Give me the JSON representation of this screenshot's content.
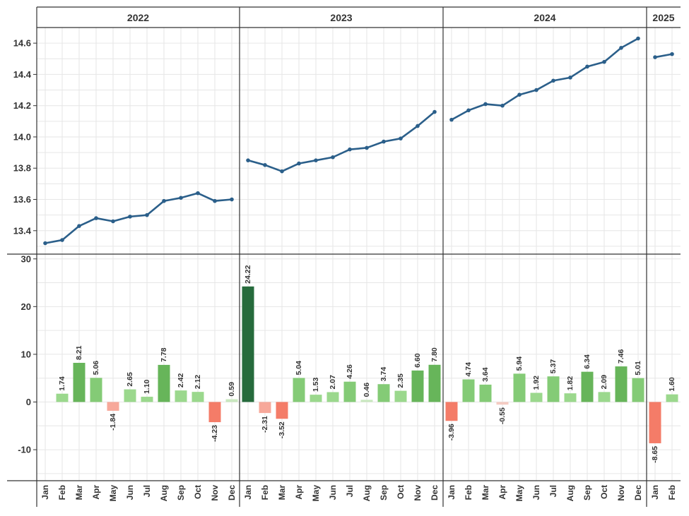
{
  "chart_data": [
    {
      "type": "line",
      "title": "",
      "ylim": [
        13.25,
        14.7
      ],
      "yticks": [
        "13.4",
        "13.6",
        "13.8",
        "14.0",
        "14.2",
        "14.4",
        "14.6"
      ],
      "color": "#2b5f8a",
      "years": [
        "2022",
        "2023",
        "2024",
        "2025"
      ],
      "series": [
        {
          "year": "2022",
          "values": [
            13.32,
            13.34,
            13.43,
            13.48,
            13.46,
            13.49,
            13.5,
            13.59,
            13.61,
            13.64,
            13.59,
            13.6
          ]
        },
        {
          "year": "2023",
          "values": [
            13.85,
            13.82,
            13.78,
            13.83,
            13.85,
            13.87,
            13.92,
            13.93,
            13.97,
            13.99,
            14.07,
            14.16
          ]
        },
        {
          "year": "2024",
          "values": [
            14.11,
            14.17,
            14.21,
            14.2,
            14.27,
            14.3,
            14.36,
            14.38,
            14.45,
            14.48,
            14.57,
            14.63
          ]
        },
        {
          "year": "2025",
          "values": [
            14.51,
            14.53
          ]
        }
      ]
    },
    {
      "type": "bar",
      "title": "",
      "ylim": [
        -16.5,
        31
      ],
      "yticks": [
        "-10",
        "0",
        "10",
        "20",
        "30"
      ],
      "years": [
        "2022",
        "2023",
        "2024",
        "2025"
      ],
      "months": [
        "Jan",
        "Feb",
        "Mar",
        "Apr",
        "May",
        "Jun",
        "Jul",
        "Aug",
        "Sep",
        "Oct",
        "Nov",
        "Dec"
      ],
      "colors": {
        "neg_strong": "#f47c68",
        "neg_light": "#f7a89a",
        "neg_faint": "#f5cbc2",
        "pos_faint": "#c9e8bf",
        "pos_light": "#9bd88d",
        "pos_mid": "#84cb76",
        "pos_strong": "#67b55a",
        "pos_max": "#266b3c"
      },
      "series": [
        {
          "year": "2022",
          "values": [
            null,
            1.74,
            8.21,
            5.06,
            -1.84,
            2.65,
            1.1,
            7.78,
            2.42,
            2.12,
            -4.23,
            0.59
          ],
          "labels": [
            "",
            "1.74",
            "8.21",
            "5.06",
            "-1.84",
            "2.65",
            "1.10",
            "7.78",
            "2.42",
            "2.12",
            "-4.23",
            "0.59"
          ]
        },
        {
          "year": "2023",
          "values": [
            24.22,
            -2.31,
            -3.52,
            5.04,
            1.53,
            2.07,
            4.26,
            0.46,
            3.74,
            2.35,
            6.6,
            7.8
          ],
          "labels": [
            "24.22",
            "-2.31",
            "-3.52",
            "5.04",
            "1.53",
            "2.07",
            "4.26",
            "0.46",
            "3.74",
            "2.35",
            "6.60",
            "7.80"
          ]
        },
        {
          "year": "2024",
          "values": [
            -3.96,
            4.74,
            3.64,
            -0.55,
            5.94,
            1.92,
            5.37,
            1.82,
            6.34,
            2.09,
            7.46,
            5.01
          ],
          "labels": [
            "-3.96",
            "4.74",
            "3.64",
            "-0.55",
            "5.94",
            "1.92",
            "5.37",
            "1.82",
            "6.34",
            "2.09",
            "7.46",
            "5.01"
          ]
        },
        {
          "year": "2025",
          "values": [
            -8.65,
            1.6
          ],
          "labels": [
            "-8.65",
            "1.60"
          ]
        }
      ]
    }
  ]
}
